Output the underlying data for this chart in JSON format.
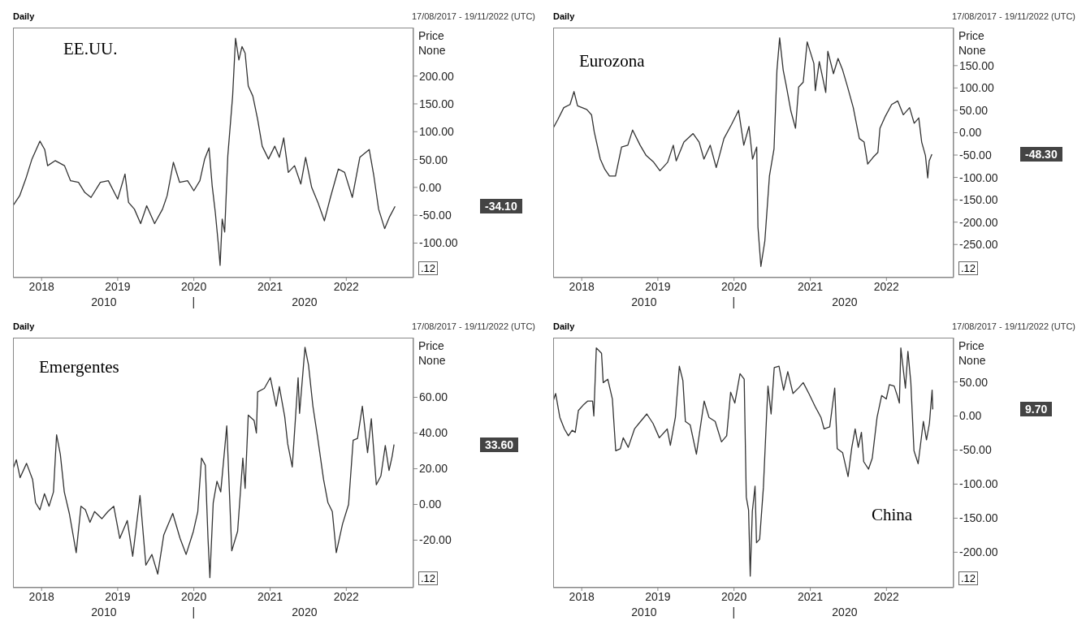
{
  "chart_data": [
    {
      "type": "line",
      "title": "EE.UU.",
      "subtitle": "Daily",
      "ylabel": "Price None",
      "color": "#333333",
      "x": [
        "2017-08-17",
        "2017-09-18",
        "2017-10-17",
        "2017-11-16",
        "2017-12-24",
        "2018-01-16",
        "2018-01-30",
        "2018-03-07",
        "2018-04-21",
        "2018-05-20",
        "2018-06-27",
        "2018-07-27",
        "2018-08-26",
        "2018-10-10",
        "2018-11-17",
        "2019-01-01",
        "2019-02-05",
        "2019-02-22",
        "2019-03-22",
        "2019-04-21",
        "2019-05-20",
        "2019-06-27",
        "2019-08-04",
        "2019-08-26",
        "2019-09-25",
        "2019-10-25",
        "2019-12-02",
        "2020-01-01",
        "2020-01-30",
        "2020-02-22",
        "2020-03-14",
        "2020-03-29",
        "2020-04-13",
        "2020-04-28",
        "2020-05-06",
        "2020-05-16",
        "2020-05-28",
        "2020-06-12",
        "2020-07-05",
        "2020-07-19",
        "2020-08-04",
        "2020-08-19",
        "2020-09-03",
        "2020-09-18",
        "2020-10-10",
        "2020-11-02",
        "2020-11-24",
        "2020-12-24",
        "2021-01-23",
        "2021-02-14",
        "2021-03-07",
        "2021-03-29",
        "2021-04-28",
        "2021-05-28",
        "2021-06-20",
        "2021-07-19",
        "2021-08-18",
        "2021-09-18",
        "2021-10-17",
        "2021-11-24",
        "2021-12-24",
        "2022-01-30",
        "2022-03-07",
        "2022-04-21",
        "2022-05-13",
        "2022-06-05",
        "2022-07-04",
        "2022-07-26",
        "2022-08-23"
      ],
      "values": [
        -33,
        -15,
        15,
        51,
        83,
        68,
        39,
        48,
        39,
        12,
        9,
        -9,
        -18,
        9,
        12,
        -21,
        24,
        -27,
        -39,
        -65,
        -33,
        -65,
        -39,
        -15,
        45,
        9,
        12,
        -6,
        12,
        51,
        71,
        3,
        -45,
        -104,
        -140,
        -57,
        -80,
        57,
        164,
        268,
        229,
        253,
        241,
        182,
        164,
        122,
        74,
        51,
        74,
        54,
        89,
        27,
        39,
        6,
        54,
        0,
        -27,
        -60,
        -18,
        33,
        27,
        -18,
        54,
        68,
        21,
        -39,
        -74,
        -54,
        -34.1
      ],
      "xlim": [
        "2017-08-17",
        "2022-11-19"
      ],
      "xticks": [
        "2018",
        "2019",
        "2020",
        "2021",
        "2022"
      ],
      "ylim": [
        -162,
        287
      ],
      "yticks": [
        {
          "value": 200,
          "label": "200.00"
        },
        {
          "value": 150,
          "label": "150.00"
        },
        {
          "value": 100,
          "label": "100.00"
        },
        {
          "value": 50,
          "label": "50.00"
        },
        {
          "value": 0,
          "label": "0.00"
        },
        {
          "value": -50,
          "label": "-50.00"
        },
        {
          "value": -100,
          "label": "-100.00"
        }
      ],
      "annotations": [
        "17/08/2017 - 19/11/2022 (UTC)",
        ".12",
        "2010",
        "|",
        "2020",
        "-34.10"
      ]
    },
    {
      "type": "line",
      "title": "Eurozona",
      "subtitle": "Daily",
      "ylabel": "Price None",
      "color": "#333333",
      "x": [
        "2017-08-17",
        "2017-09-08",
        "2017-10-07",
        "2017-11-06",
        "2017-11-25",
        "2017-12-12",
        "2018-01-25",
        "2018-02-17",
        "2018-03-02",
        "2018-03-31",
        "2018-04-22",
        "2018-05-14",
        "2018-06-12",
        "2018-07-11",
        "2018-08-10",
        "2018-09-02",
        "2018-10-08",
        "2018-11-06",
        "2018-12-12",
        "2019-01-11",
        "2019-02-17",
        "2019-03-16",
        "2019-03-30",
        "2019-05-06",
        "2019-06-19",
        "2019-07-18",
        "2019-08-10",
        "2019-09-09",
        "2019-10-08",
        "2019-11-14",
        "2019-12-20",
        "2020-01-23",
        "2020-02-17",
        "2020-03-13",
        "2020-03-30",
        "2020-04-19",
        "2020-04-25",
        "2020-05-09",
        "2020-05-28",
        "2020-06-19",
        "2020-07-11",
        "2020-07-25",
        "2020-08-07",
        "2020-08-24",
        "2020-09-09",
        "2020-09-30",
        "2020-10-22",
        "2020-11-06",
        "2020-11-28",
        "2020-12-17",
        "2021-01-18",
        "2021-01-25",
        "2021-02-13",
        "2021-03-16",
        "2021-03-26",
        "2021-04-22",
        "2021-05-14",
        "2021-06-05",
        "2021-06-27",
        "2021-07-26",
        "2021-08-24",
        "2021-09-16",
        "2021-10-03",
        "2021-10-29",
        "2021-11-21",
        "2021-12-01",
        "2021-12-27",
        "2022-01-26",
        "2022-02-24",
        "2022-03-23",
        "2022-04-22",
        "2022-05-14",
        "2022-06-05",
        "2022-06-19",
        "2022-07-07",
        "2022-07-18",
        "2022-07-25",
        "2022-08-07"
      ],
      "values": [
        10,
        29,
        56,
        63,
        92,
        60,
        52,
        40,
        2,
        -59,
        -82,
        -97,
        -97,
        -32,
        -28,
        6,
        -28,
        -51,
        -66,
        -85,
        -66,
        -28,
        -63,
        -21,
        -2,
        -21,
        -59,
        -28,
        -78,
        -13,
        18,
        50,
        -28,
        14,
        -59,
        -32,
        -211,
        -299,
        -242,
        -97,
        -36,
        140,
        212,
        140,
        102,
        48,
        10,
        102,
        113,
        203,
        155,
        94,
        159,
        90,
        182,
        132,
        166,
        140,
        105,
        56,
        -13,
        -21,
        -70,
        -55,
        -44,
        10,
        37,
        63,
        71,
        40,
        56,
        21,
        33,
        -21,
        -51,
        -101,
        -63,
        -48.3
      ],
      "xlim": [
        "2017-08-17",
        "2022-11-19"
      ],
      "xticks": [
        "2018",
        "2019",
        "2020",
        "2021",
        "2022"
      ],
      "ylim": [
        -324,
        235
      ],
      "yticks": [
        {
          "value": 150,
          "label": "150.00"
        },
        {
          "value": 100,
          "label": "100.00"
        },
        {
          "value": 50,
          "label": "50.00"
        },
        {
          "value": 0,
          "label": "0.00"
        },
        {
          "value": -50,
          "label": "-50.00"
        },
        {
          "value": -100,
          "label": "-100.00"
        },
        {
          "value": -150,
          "label": "-150.00"
        },
        {
          "value": -200,
          "label": "-200.00"
        },
        {
          "value": -250,
          "label": "-250.00"
        }
      ],
      "annotations": [
        "17/08/2017 - 19/11/2022 (UTC)",
        ".12",
        "2010",
        "|",
        "2020",
        "-48.30"
      ]
    },
    {
      "type": "line",
      "title": "Emergentes",
      "subtitle": "Daily",
      "ylabel": "Price None",
      "color": "#333333",
      "x": [
        "2017-08-17",
        "2017-09-02",
        "2017-09-20",
        "2017-10-21",
        "2017-11-19",
        "2017-12-03",
        "2017-12-24",
        "2018-01-15",
        "2018-02-06",
        "2018-02-27",
        "2018-03-14",
        "2018-04-01",
        "2018-04-20",
        "2018-05-14",
        "2018-06-16",
        "2018-07-09",
        "2018-07-30",
        "2018-08-21",
        "2018-09-12",
        "2018-10-17",
        "2018-11-15",
        "2018-12-13",
        "2019-01-11",
        "2019-02-16",
        "2019-03-14",
        "2019-04-18",
        "2019-05-16",
        "2019-06-14",
        "2019-07-12",
        "2019-08-10",
        "2019-09-22",
        "2019-10-27",
        "2019-11-25",
        "2019-12-30",
        "2020-01-20",
        "2020-02-07",
        "2020-02-25",
        "2020-03-09",
        "2020-03-18",
        "2020-04-03",
        "2020-04-21",
        "2020-05-09",
        "2020-06-07",
        "2020-07-01",
        "2020-07-29",
        "2020-08-23",
        "2020-09-03",
        "2020-09-18",
        "2020-10-16",
        "2020-10-27",
        "2020-11-02",
        "2020-12-04",
        "2021-01-02",
        "2021-01-30",
        "2021-02-14",
        "2021-03-12",
        "2021-03-26",
        "2021-04-17",
        "2021-05-15",
        "2021-05-22",
        "2021-06-17",
        "2021-07-04",
        "2021-07-25",
        "2021-08-16",
        "2021-09-14",
        "2021-10-05",
        "2021-10-26",
        "2021-11-14",
        "2021-12-14",
        "2022-01-12",
        "2022-02-03",
        "2022-02-24",
        "2022-03-19",
        "2022-04-13",
        "2022-05-01",
        "2022-05-25",
        "2022-06-16",
        "2022-07-07",
        "2022-07-25",
        "2022-08-09",
        "2022-08-18"
      ],
      "values": [
        20,
        25,
        15,
        23,
        14,
        1,
        -3,
        6,
        -1,
        7,
        39,
        28,
        7,
        -5,
        -27,
        -1,
        -3,
        -10,
        -4,
        -8,
        -4,
        -1,
        -19,
        -9,
        -29,
        5,
        -34,
        -28,
        -39,
        -17,
        -5,
        -19,
        -28,
        -15,
        -4,
        26,
        22,
        -19,
        -41,
        1,
        13,
        7,
        44,
        -26,
        -15,
        26,
        9,
        50,
        47,
        40,
        63,
        65,
        71,
        55,
        66,
        49,
        34,
        21,
        71,
        51,
        88,
        78,
        55,
        38,
        14,
        1,
        -4,
        -27,
        -11,
        0,
        36,
        37,
        55,
        29,
        48,
        11,
        16,
        33,
        19,
        27,
        33.6
      ],
      "xlim": [
        "2017-08-17",
        "2022-11-19"
      ],
      "xticks": [
        "2018",
        "2019",
        "2020",
        "2021",
        "2022"
      ],
      "ylim": [
        -46.6,
        93.4
      ],
      "yticks": [
        {
          "value": 60,
          "label": "60.00"
        },
        {
          "value": 40,
          "label": "40.00"
        },
        {
          "value": 20,
          "label": "20.00"
        },
        {
          "value": 0,
          "label": "0.00"
        },
        {
          "value": -20,
          "label": "-20.00"
        }
      ],
      "annotations": [
        "17/08/2017 - 19/11/2022 (UTC)",
        ".12",
        "2010",
        "|",
        "2020",
        "33.60"
      ]
    },
    {
      "type": "line",
      "title": "China",
      "subtitle": "Daily",
      "ylabel": "Price None",
      "color": "#333333",
      "x": [
        "2017-08-17",
        "2017-08-29",
        "2017-09-18",
        "2017-10-10",
        "2017-10-29",
        "2017-11-16",
        "2017-12-01",
        "2017-12-16",
        "2018-01-08",
        "2018-01-30",
        "2018-02-22",
        "2018-02-28",
        "2018-03-12",
        "2018-04-06",
        "2018-04-14",
        "2018-05-06",
        "2018-05-28",
        "2018-06-13",
        "2018-07-05",
        "2018-07-19",
        "2018-08-12",
        "2018-09-11",
        "2018-10-10",
        "2018-11-09",
        "2018-12-09",
        "2019-01-08",
        "2019-02-15",
        "2019-03-02",
        "2019-03-26",
        "2019-04-14",
        "2019-05-01",
        "2019-05-13",
        "2019-06-05",
        "2019-07-05",
        "2019-08-11",
        "2019-09-03",
        "2019-10-03",
        "2019-11-02",
        "2019-11-27",
        "2019-12-16",
        "2020-01-05",
        "2020-01-30",
        "2020-02-19",
        "2020-02-29",
        "2020-03-11",
        "2020-03-19",
        "2020-03-29",
        "2020-04-11",
        "2020-04-18",
        "2020-05-03",
        "2020-05-21",
        "2020-06-05",
        "2020-06-12",
        "2020-06-27",
        "2020-07-12",
        "2020-08-04",
        "2020-08-26",
        "2020-09-15",
        "2020-10-10",
        "2020-11-05",
        "2020-11-28",
        "2020-12-25",
        "2021-01-24",
        "2021-02-21",
        "2021-03-08",
        "2021-04-04",
        "2021-04-28",
        "2021-05-10",
        "2021-06-05",
        "2021-07-01",
        "2021-07-19",
        "2021-08-04",
        "2021-08-19",
        "2021-09-03",
        "2021-09-14",
        "2021-10-07",
        "2021-10-25",
        "2021-11-17",
        "2021-12-09",
        "2021-12-31",
        "2022-01-15",
        "2022-02-07",
        "2022-02-22",
        "2022-03-04",
        "2022-03-11",
        "2022-04-02",
        "2022-04-14",
        "2022-04-28",
        "2022-05-13",
        "2022-06-02",
        "2022-06-27",
        "2022-07-12",
        "2022-07-26",
        "2022-08-08",
        "2022-08-11"
      ],
      "values": [
        22,
        33,
        -2,
        -19,
        -29,
        -21,
        -24,
        8,
        16,
        22,
        22,
        0,
        100,
        92,
        49,
        54,
        25,
        -51,
        -48,
        -32,
        -46,
        -19,
        -8,
        3,
        -11,
        -32,
        -19,
        -43,
        -2,
        73,
        52,
        -8,
        -13,
        -56,
        22,
        -2,
        -8,
        -38,
        -29,
        35,
        19,
        62,
        54,
        -119,
        -138,
        -235,
        -140,
        -103,
        -186,
        -181,
        -105,
        -2,
        44,
        3,
        71,
        73,
        38,
        65,
        33,
        41,
        49,
        33,
        14,
        -2,
        -19,
        -16,
        41,
        -48,
        -54,
        -89,
        -46,
        -19,
        -46,
        -24,
        -67,
        -78,
        -62,
        -2,
        30,
        25,
        46,
        44,
        30,
        19,
        100,
        41,
        95,
        49,
        -51,
        -70,
        -8,
        -35,
        -11,
        38,
        9.7
      ],
      "xlim": [
        "2017-08-17",
        "2022-11-19"
      ],
      "xticks": [
        "2018",
        "2019",
        "2020",
        "2021",
        "2022"
      ],
      "ylim": [
        -252,
        115
      ],
      "yticks": [
        {
          "value": 50,
          "label": "50.00"
        },
        {
          "value": 0,
          "label": "0.00"
        },
        {
          "value": -50,
          "label": "-50.00"
        },
        {
          "value": -100,
          "label": "-100.00"
        },
        {
          "value": -150,
          "label": "-150.00"
        },
        {
          "value": -200,
          "label": "-200.00"
        }
      ],
      "annotations": [
        "17/08/2017 - 19/11/2022 (UTC)",
        ".12",
        "2010",
        "|",
        "2020",
        "9.70"
      ]
    }
  ]
}
